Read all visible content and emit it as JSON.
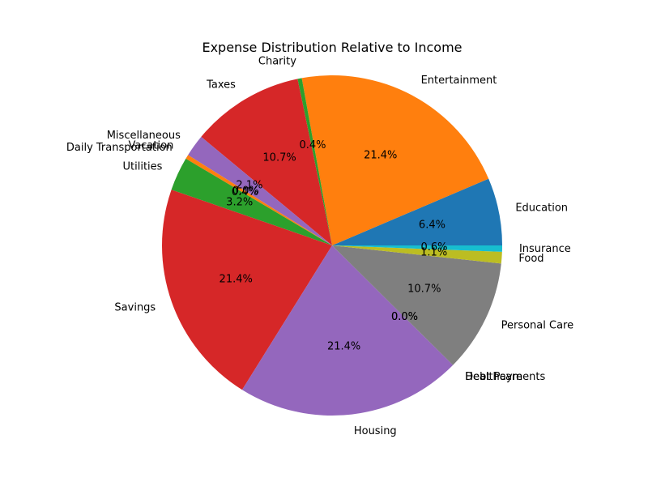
{
  "chart_data": {
    "type": "pie",
    "title": "Expense Distribution Relative to Income",
    "start_angle_deg": 0,
    "direction": "counterclockwise",
    "legend": "none",
    "slices": [
      {
        "label": "Education",
        "value": 6.4,
        "pct_text": "6.4%",
        "color": "#1f77b4"
      },
      {
        "label": "Entertainment",
        "value": 21.4,
        "pct_text": "21.4%",
        "color": "#ff7f0e"
      },
      {
        "label": "Charity",
        "value": 0.4,
        "pct_text": "0.4%",
        "color": "#2ca02c"
      },
      {
        "label": "Taxes",
        "value": 10.7,
        "pct_text": "10.7%",
        "color": "#d62728"
      },
      {
        "label": "Miscellaneous",
        "value": 2.1,
        "pct_text": "2.1%",
        "color": "#9467bd"
      },
      {
        "label": "Vacation",
        "value": 0.0,
        "pct_text": "0.0%",
        "color": "#8c564b"
      },
      {
        "label": "Daily Transportation",
        "value": 0.4,
        "pct_text": "0.4%",
        "color": "#ff7f0e"
      },
      {
        "label": "Utilities",
        "value": 3.2,
        "pct_text": "3.2%",
        "color": "#2ca02c"
      },
      {
        "label": "Savings",
        "value": 21.4,
        "pct_text": "21.4%",
        "color": "#d62728"
      },
      {
        "label": "Housing",
        "value": 21.4,
        "pct_text": "21.4%",
        "color": "#9467bd"
      },
      {
        "label": "Debt Payments",
        "value": 0.0,
        "pct_text": "0.0%",
        "color": "#8c564b"
      },
      {
        "label": "Healthcare",
        "value": 0.0,
        "pct_text": "0.0%",
        "color": "#e377c2"
      },
      {
        "label": "Personal Care",
        "value": 10.7,
        "pct_text": "10.7%",
        "color": "#7f7f7f"
      },
      {
        "label": "Food",
        "value": 1.1,
        "pct_text": "1.1%",
        "color": "#bcbd22"
      },
      {
        "label": "Insurance",
        "value": 0.6,
        "pct_text": "0.6%",
        "color": "#17becf"
      }
    ]
  }
}
